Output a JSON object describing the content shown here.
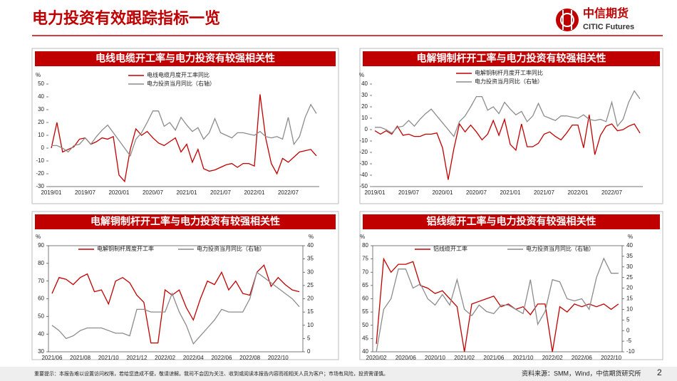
{
  "header": {
    "title": "电力投资有效跟踪指标一览",
    "logo_cn": "中信期货",
    "logo_en": "CITIC Futures"
  },
  "chart_data": [
    {
      "type": "line",
      "title": "电线电缆开工率与电力投资有较强相关性",
      "ylabel": "%",
      "categories": [
        "2019/01",
        null,
        null,
        null,
        null,
        null,
        "2019/07",
        null,
        null,
        null,
        null,
        null,
        "2020/01",
        null,
        null,
        null,
        null,
        null,
        "2020/07",
        null,
        null,
        null,
        null,
        null,
        "2021/01",
        null,
        null,
        null,
        null,
        null,
        "2021/07",
        null,
        null,
        null,
        null,
        null,
        "2022/01",
        null,
        null,
        null,
        null,
        null,
        "2022/07",
        null,
        null,
        null,
        null,
        null
      ],
      "ylim": [
        -30,
        50
      ],
      "yticks": [
        -30,
        -20,
        -10,
        0,
        10,
        20,
        30,
        40,
        50
      ],
      "series": [
        {
          "name": "电线电缆月度开工率同比",
          "color": "#c00000",
          "values": [
            0,
            20,
            -3,
            -1,
            1,
            7,
            8,
            3,
            5,
            8,
            7,
            9,
            -21,
            -26,
            -1,
            15,
            10,
            13,
            8,
            4,
            2,
            5,
            8,
            -3,
            3,
            -11,
            -1,
            -16,
            -18,
            -17,
            -15,
            -13,
            -12,
            -15,
            -12,
            -12,
            -14,
            42,
            8,
            -12,
            -20,
            -8,
            -11,
            -7,
            -3,
            -2,
            -1,
            -6
          ]
        },
        {
          "name": "电力投资当月同比（右轴）",
          "color": "#8c8c8c",
          "values": [
            2,
            2,
            0,
            -3,
            2,
            3,
            8,
            3,
            9,
            14,
            18,
            12,
            6,
            0,
            -6,
            7,
            12,
            20,
            29,
            29,
            17,
            20,
            14,
            24,
            18,
            13,
            16,
            7,
            12,
            23,
            12,
            10,
            8,
            12,
            12,
            11,
            10,
            13,
            9,
            8,
            9,
            7,
            24,
            3,
            9,
            24,
            34,
            27
          ]
        }
      ]
    },
    {
      "type": "line",
      "title": "电解铜制杆开工率与电力投资有较强相关性",
      "ylabel": "%",
      "categories": [
        "2019/01",
        null,
        null,
        null,
        null,
        null,
        "2019/07",
        null,
        null,
        null,
        null,
        null,
        "2020/01",
        null,
        null,
        null,
        null,
        null,
        "2020/07",
        null,
        null,
        null,
        null,
        null,
        "2021/01",
        null,
        null,
        null,
        null,
        null,
        "2021/07",
        null,
        null,
        null,
        null,
        null,
        "2022/01",
        null,
        null,
        null,
        null,
        null,
        "2022/07",
        null,
        null,
        null,
        null,
        null
      ],
      "ylim": [
        -50,
        40
      ],
      "yticks": [
        -50,
        -40,
        -30,
        -20,
        -10,
        0,
        10,
        20,
        30,
        40
      ],
      "series": [
        {
          "name": "电解铜制杆月度开工率同比",
          "color": "#c00000",
          "values": [
            -1,
            -4,
            -1,
            -4,
            3,
            -5,
            -4,
            -6,
            -6,
            -4,
            -4,
            -3,
            -16,
            -44,
            -17,
            5,
            -2,
            4,
            -2,
            -9,
            -4,
            8,
            -5,
            9,
            -13,
            -18,
            5,
            -15,
            -15,
            -12,
            -4,
            -2,
            -6,
            -9,
            -3,
            4,
            4,
            -16,
            13,
            -22,
            -5,
            3,
            5,
            -1,
            0,
            3,
            5,
            -3
          ]
        },
        {
          "name": "电力投资当月同比（右轴）",
          "color": "#8c8c8c",
          "values": [
            2,
            2,
            0,
            -3,
            2,
            3,
            8,
            3,
            9,
            14,
            18,
            12,
            6,
            0,
            -6,
            7,
            12,
            20,
            29,
            29,
            17,
            20,
            14,
            24,
            18,
            13,
            16,
            7,
            12,
            23,
            12,
            10,
            8,
            12,
            12,
            11,
            10,
            13,
            9,
            8,
            9,
            7,
            24,
            3,
            9,
            24,
            34,
            27
          ]
        }
      ]
    },
    {
      "type": "line",
      "title": "电解铜制杆开工率与电力投资有较强相关性",
      "ylabel": "%",
      "y2label": "%",
      "categories": [
        "2021/06",
        null,
        null,
        null,
        "2021/08",
        null,
        null,
        null,
        "2021/10",
        null,
        null,
        null,
        "2021/12",
        null,
        null,
        null,
        "2022/02",
        null,
        null,
        null,
        "2022/04",
        null,
        null,
        null,
        "2022/06",
        null,
        null,
        null,
        "2022/08",
        null,
        null,
        null,
        "2022/10",
        null,
        null,
        null
      ],
      "ylim": [
        30,
        90
      ],
      "yticks": [
        30,
        40,
        50,
        60,
        70,
        80,
        90
      ],
      "y2lim": [
        0,
        40
      ],
      "y2ticks": [
        0,
        5,
        10,
        15,
        20,
        25,
        30,
        35,
        40
      ],
      "series": [
        {
          "name": "电解铜制杆周度开工率",
          "color": "#c00000",
          "values": [
            63,
            72,
            71,
            68,
            72,
            74,
            64,
            65,
            57,
            70,
            72,
            69,
            62,
            58,
            35,
            35,
            65,
            62,
            65,
            55,
            48,
            60,
            70,
            68,
            75,
            65,
            70,
            63,
            62,
            75,
            79,
            67,
            72,
            68,
            65,
            64
          ]
        },
        {
          "name": "电力投资当月同比（右轴）",
          "color": "#8c8c8c",
          "axis": "y2",
          "values": [
            10,
            8,
            5,
            6,
            8,
            9,
            9,
            9,
            8,
            7,
            7,
            6,
            16,
            16,
            15,
            15,
            15,
            22,
            15,
            10,
            3,
            6,
            9,
            12,
            16,
            15,
            15,
            15,
            20,
            30,
            28,
            26,
            24,
            22,
            20,
            17
          ]
        }
      ]
    },
    {
      "type": "line",
      "title": "铝线缆开工率与电力投资有较强相关性",
      "ylabel": "%",
      "y2label": "%",
      "categories": [
        "2020/02",
        null,
        null,
        null,
        "2020/06",
        null,
        null,
        null,
        "2020/10",
        null,
        null,
        null,
        "2021/02",
        null,
        null,
        null,
        "2021/06",
        null,
        null,
        null,
        "2021/10",
        null,
        null,
        null,
        "2022/02",
        null,
        null,
        null,
        "2022/06",
        null,
        null,
        null,
        "2022/10",
        null
      ],
      "ylim": [
        40,
        80
      ],
      "yticks": [
        40,
        45,
        50,
        55,
        60,
        65,
        70,
        75,
        80
      ],
      "y2lim": [
        -10,
        40
      ],
      "y2ticks": [
        -10,
        -5,
        0,
        5,
        10,
        15,
        20,
        25,
        30,
        35,
        40
      ],
      "series": [
        {
          "name": "铝线缆开工率",
          "color": "#c00000",
          "values": [
            43,
            75,
            70,
            73,
            73,
            74,
            65,
            64,
            62,
            63,
            60,
            57,
            40,
            58,
            59,
            60,
            61,
            57,
            58,
            56,
            57,
            54,
            58,
            58,
            40,
            57,
            55,
            58,
            57,
            58,
            57,
            58,
            56,
            58
          ]
        },
        {
          "name": "电力投资当月同比（右轴）",
          "color": "#8c8c8c",
          "axis": "y2",
          "values": [
            -10,
            10,
            15,
            29,
            29,
            20,
            22,
            15,
            12,
            17,
            12,
            24,
            10,
            7,
            12,
            9,
            8,
            12,
            12,
            10,
            8,
            24,
            3,
            9,
            24,
            23,
            15,
            14,
            15,
            10,
            25,
            34,
            27,
            27
          ]
        }
      ]
    }
  ],
  "footer": {
    "disclaimer": "重要提示：本报告难以设置访问权限，若给您造成不便，敬请谅解。我司不会因为关注、收到或阅读本报告内容而视相关人员为客户；市场有风险，投资需谨慎。",
    "source": "资料来源：SMM，Wind，中信期货研究所",
    "page": "2"
  }
}
